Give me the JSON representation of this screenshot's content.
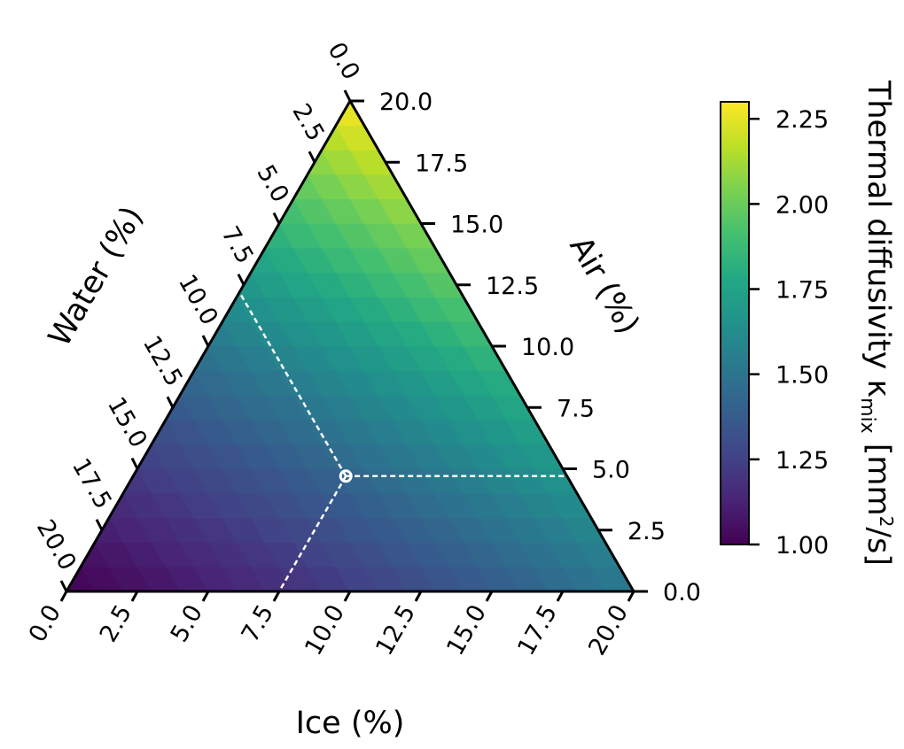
{
  "chart_data": {
    "type": "ternary-heatmap",
    "axes": {
      "ice": {
        "label": "Ice (%)",
        "range": [
          0,
          20
        ],
        "ticks": [
          "0.0",
          "2.5",
          "5.0",
          "7.5",
          "10.0",
          "12.5",
          "15.0",
          "17.5",
          "20.0"
        ]
      },
      "air": {
        "label": "Air (%)",
        "range": [
          0,
          20
        ],
        "ticks": [
          "0.0",
          "2.5",
          "5.0",
          "7.5",
          "10.0",
          "12.5",
          "15.0",
          "17.5",
          "20.0"
        ]
      },
      "water": {
        "label": "Water (%)",
        "range": [
          0,
          20
        ],
        "ticks": [
          "0.0",
          "2.5",
          "5.0",
          "7.5",
          "10.0",
          "12.5",
          "15.0",
          "17.5",
          "20.0"
        ]
      }
    },
    "total": 20,
    "field": {
      "description_of_values": "thermal diffusivity at pure-component corners",
      "corner_values": {
        "water": 1.0,
        "ice": 1.52,
        "air": 2.3
      },
      "mixing": "geometric",
      "subdivisions": 20
    },
    "marker": {
      "ice": 7.5,
      "air": 4.7,
      "water": 7.8
    },
    "colorbar": {
      "label_main": "Thermal diffusivity κ",
      "label_sub": "mix",
      "label_unit_pre": " [mm",
      "label_unit_sup": "2",
      "label_unit_post": "/s]",
      "range": [
        1.0,
        2.3
      ],
      "ticks": [
        "1.00",
        "1.25",
        "1.50",
        "1.75",
        "2.00",
        "2.25"
      ],
      "colormap": "viridis"
    }
  }
}
